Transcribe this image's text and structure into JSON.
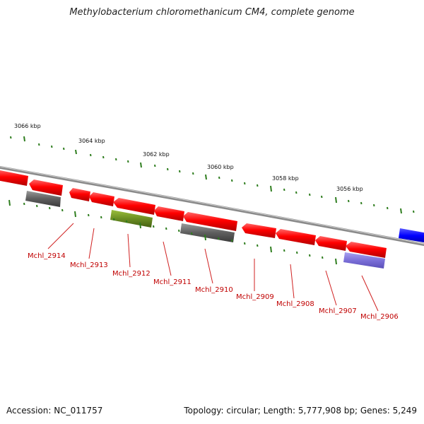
{
  "title": "Methylobacterium chloromethanicum CM4, complete genome",
  "accession": "Accession: NC_011757",
  "summary": "Topology: circular; Length: 5,777,908 bp; Genes: 5,249",
  "colors": {
    "backbone": "#888888",
    "gene_forward": "#ff1a1a",
    "gene_grey": "#666666",
    "gene_olive": "#6b8e23",
    "gene_lavender": "#7b6fd8",
    "gene_blue": "#1a1aff",
    "tick": "#2e7d1e",
    "label": "#c00000"
  },
  "scale_labels": [
    "3066 kbp",
    "3064 kbp",
    "3062 kbp",
    "3060 kbp",
    "3058 kbp",
    "3056 kbp"
  ],
  "gene_labels": [
    "Mchl_2914",
    "Mchl_2913",
    "Mchl_2912",
    "Mchl_2911",
    "Mchl_2910",
    "Mchl_2909",
    "Mchl_2908",
    "Mchl_2907",
    "Mchl_2906"
  ]
}
